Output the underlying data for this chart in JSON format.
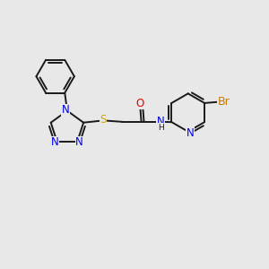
{
  "bg_color": "#e8e8e8",
  "bond_color": "#1a1a1a",
  "atom_colors": {
    "N": "#0000ee",
    "O": "#ee0000",
    "S": "#ccaa00",
    "Br": "#cc7700",
    "C": "#1a1a1a",
    "H": "#1a1a1a"
  },
  "font_size": 8.5,
  "bond_width": 1.4,
  "figsize": [
    3.0,
    3.0
  ],
  "dpi": 100
}
